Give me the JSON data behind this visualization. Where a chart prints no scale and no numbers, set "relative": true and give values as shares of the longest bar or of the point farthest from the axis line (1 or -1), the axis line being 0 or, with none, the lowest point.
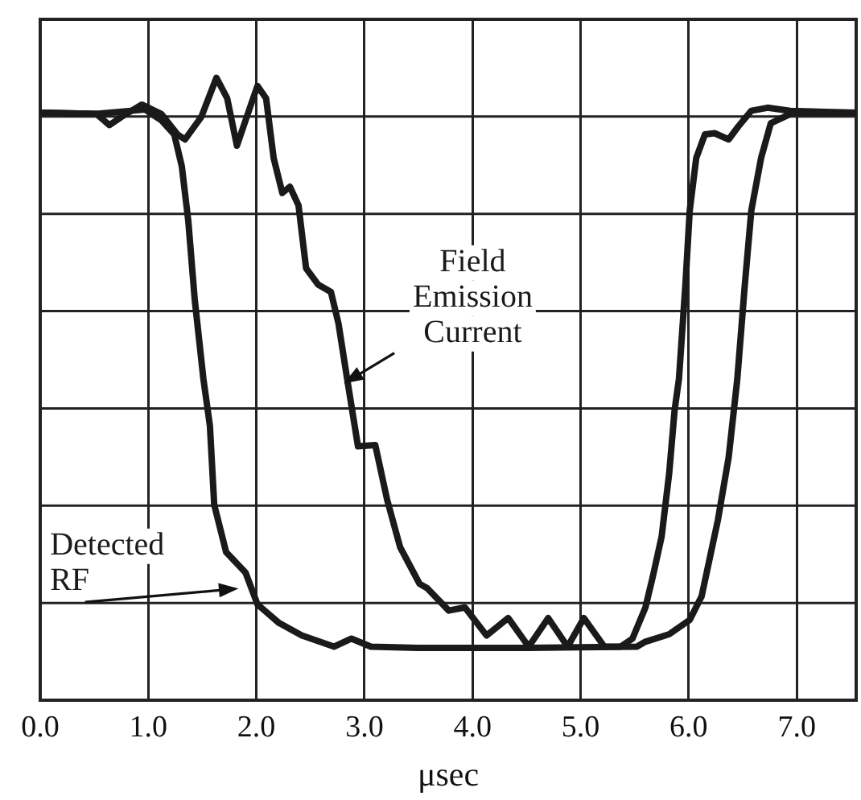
{
  "chart_data": {
    "type": "line",
    "xlabel": "μsec",
    "relative": true,
    "xlim": [
      0,
      7.55
    ],
    "xticks": [
      {
        "value": 0,
        "label": "0.0"
      },
      {
        "value": 1,
        "label": "1.0"
      },
      {
        "value": 2,
        "label": "2.0"
      },
      {
        "value": 3,
        "label": "3.0"
      },
      {
        "value": 4,
        "label": "4.0"
      },
      {
        "value": 5,
        "label": "5.0"
      },
      {
        "value": 6,
        "label": "6.0"
      },
      {
        "value": 7,
        "label": "7.0"
      }
    ],
    "grid": true,
    "marker": "none",
    "line_style": "solid",
    "series": [
      {
        "name": "Detected RF",
        "color": "#1a1a1a",
        "x": [
          0,
          0.52,
          0.97,
          1.12,
          1.24,
          1.31,
          1.37,
          1.43,
          1.51,
          1.57,
          1.61,
          1.72,
          1.9,
          2.01,
          2.21,
          2.42,
          2.72,
          2.88,
          3.06,
          3.5,
          4.5,
          5.52,
          5.6,
          5.82,
          6.01,
          6.12,
          6.27,
          6.37,
          6.45,
          6.52,
          6.58,
          6.67,
          6.76,
          6.97,
          7.55
        ],
        "values": [
          0.944,
          0.942,
          0.949,
          0.932,
          0.909,
          0.858,
          0.77,
          0.643,
          0.516,
          0.441,
          0.314,
          0.238,
          0.205,
          0.154,
          0.124,
          0.104,
          0.086,
          0.099,
          0.086,
          0.084,
          0.084,
          0.086,
          0.094,
          0.106,
          0.129,
          0.167,
          0.289,
          0.39,
          0.516,
          0.668,
          0.787,
          0.871,
          0.927,
          0.944,
          0.944
        ]
      },
      {
        "name": "Field Emission Current",
        "color": "#1a1a1a",
        "x": [
          0,
          0.52,
          0.64,
          0.75,
          0.94,
          1.12,
          1.27,
          1.34,
          1.49,
          1.63,
          1.73,
          1.82,
          1.93,
          2.01,
          2.09,
          2.16,
          2.24,
          2.31,
          2.39,
          2.46,
          2.57,
          2.69,
          2.76,
          2.84,
          2.94,
          3.1,
          3.21,
          3.33,
          3.51,
          3.58,
          3.78,
          3.93,
          4.13,
          4.33,
          4.52,
          4.7,
          4.88,
          5.03,
          5.22,
          5.37,
          5.48,
          5.6,
          5.67,
          5.75,
          5.82,
          5.87,
          5.91,
          5.97,
          6.01,
          6.07,
          6.15,
          6.24,
          6.37,
          6.46,
          6.58,
          6.73,
          6.94,
          7.55
        ],
        "values": [
          0.944,
          0.942,
          0.924,
          0.937,
          0.957,
          0.942,
          0.909,
          0.901,
          0.937,
          1.0,
          0.967,
          0.891,
          0.947,
          0.987,
          0.967,
          0.871,
          0.815,
          0.825,
          0.795,
          0.694,
          0.668,
          0.656,
          0.605,
          0.516,
          0.408,
          0.41,
          0.322,
          0.246,
          0.187,
          0.18,
          0.144,
          0.149,
          0.104,
          0.132,
          0.086,
          0.132,
          0.086,
          0.132,
          0.086,
          0.086,
          0.099,
          0.149,
          0.2,
          0.263,
          0.365,
          0.466,
          0.516,
          0.668,
          0.787,
          0.871,
          0.909,
          0.911,
          0.901,
          0.922,
          0.947,
          0.952,
          0.947,
          0.944
        ]
      }
    ]
  }
}
